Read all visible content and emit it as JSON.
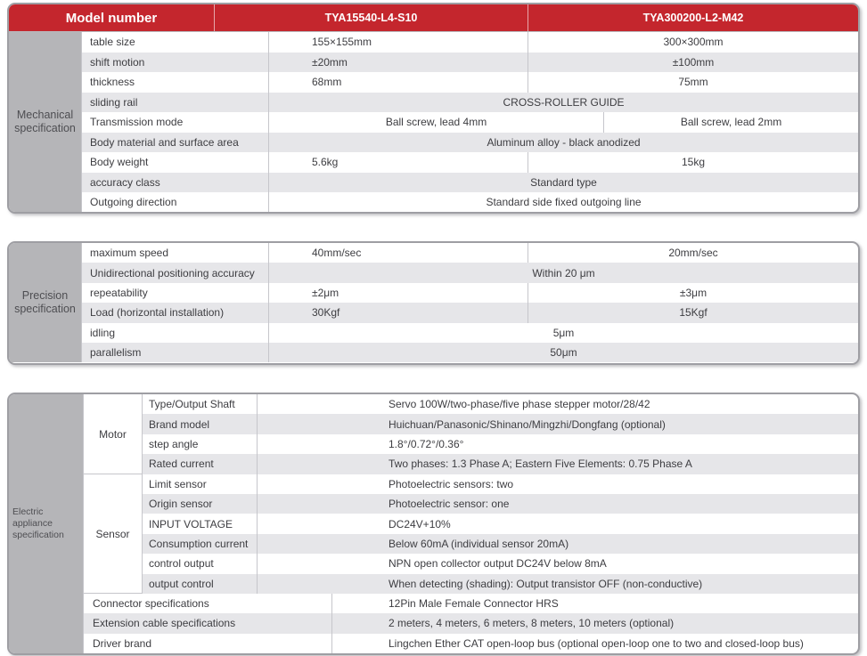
{
  "header": {
    "model_label": "Model number",
    "models": [
      "TYA15540-L4-S10",
      "TYA300200-L2-M42"
    ]
  },
  "mechanical": {
    "section_label": "Mechanical specification",
    "rows": [
      {
        "label": "table size",
        "values": [
          "155×155mm",
          "300×300mm"
        ]
      },
      {
        "label": "shift motion",
        "values": [
          "±20mm",
          "±100mm"
        ]
      },
      {
        "label": "thickness",
        "values": [
          "68mm",
          "75mm"
        ]
      },
      {
        "label": "sliding rail",
        "span": "CROSS-ROLLER GUIDE"
      },
      {
        "label": "Transmission mode",
        "values": [
          "Ball screw, lead 4mm",
          "Ball screw, lead 2mm"
        ]
      },
      {
        "label": "Body material and surface area",
        "span": "Aluminum alloy - black anodized"
      },
      {
        "label": "Body weight",
        "values": [
          "5.6kg",
          "15kg"
        ]
      },
      {
        "label": "accuracy class",
        "span": "Standard type"
      },
      {
        "label": "Outgoing direction",
        "span": "Standard side fixed outgoing line"
      }
    ]
  },
  "precision": {
    "section_label": "Precision specification",
    "rows": [
      {
        "label": "maximum speed",
        "values": [
          "40mm/sec",
          "20mm/sec"
        ]
      },
      {
        "label": "Unidirectional positioning accuracy",
        "span": "Within 20 μm"
      },
      {
        "label": "repeatability",
        "values": [
          "±2μm",
          "±3μm"
        ]
      },
      {
        "label": "Load (horizontal installation)",
        "values": [
          "30Kgf",
          "15Kgf"
        ]
      },
      {
        "label": "idling",
        "span": "5μm"
      },
      {
        "label": "parallelism",
        "span": "50μm"
      }
    ]
  },
  "electric": {
    "section_label": "Electric appliance specification",
    "motor": {
      "label": "Motor",
      "rows": [
        {
          "label": "Type/Output Shaft",
          "value": "Servo 100W/two-phase/five phase stepper motor/28/42"
        },
        {
          "label": "Brand model",
          "value": "Huichuan/Panasonic/Shinano/Mingzhi/Dongfang (optional)"
        },
        {
          "label": "step angle",
          "value": "1.8°/0.72°/0.36°"
        },
        {
          "label": "Rated current",
          "value": "Two phases: 1.3 Phase A; Eastern Five Elements: 0.75 Phase A"
        }
      ]
    },
    "sensor": {
      "label": "Sensor",
      "rows": [
        {
          "label": "Limit sensor",
          "value": "Photoelectric sensors: two"
        },
        {
          "label": "Origin sensor",
          "value": "Photoelectric sensor: one"
        },
        {
          "label": "INPUT VOLTAGE",
          "value": "DC24V+10%"
        },
        {
          "label": "Consumption current",
          "value": "Below 60mA (individual sensor 20mA)"
        },
        {
          "label": "control output",
          "value": "NPN open collector output DC24V below 8mA"
        },
        {
          "label": "output control",
          "value": "When detecting (shading): Output transistor OFF (non-conductive)"
        }
      ]
    },
    "general": {
      "rows": [
        {
          "label": "Connector specifications",
          "value": "12Pin Male Female Connector HRS"
        },
        {
          "label": "Extension cable specifications",
          "value": "2 meters, 4 meters, 6 meters, 8 meters, 10 meters (optional)"
        },
        {
          "label": "Driver brand",
          "value": "Lingchen Ether CAT open-loop bus (optional open-loop one to two and closed-loop bus)"
        }
      ]
    }
  },
  "colors": {
    "header_red": "#c4262d",
    "side_column_gray": "#b5b5b8",
    "row_stripe_gray": "#e6e6e9",
    "frame_border": "#9e9ea3",
    "grid_line": "#c6c6cb",
    "text": "#3d3d41"
  }
}
